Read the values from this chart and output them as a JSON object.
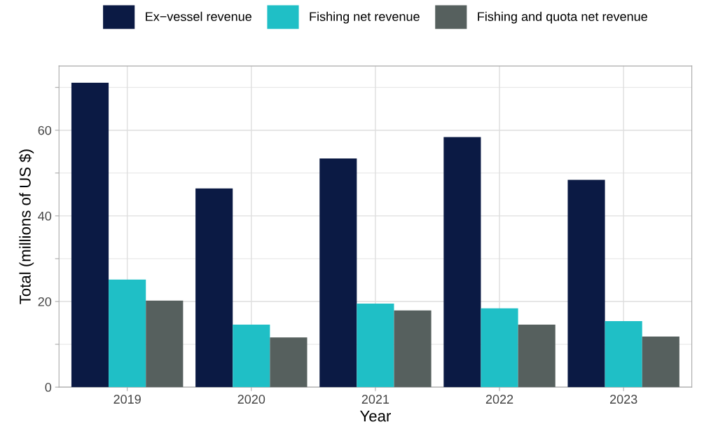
{
  "chart_data": {
    "type": "bar",
    "xlabel": "Year",
    "ylabel": "Total (millions of US $)",
    "categories": [
      "2019",
      "2020",
      "2021",
      "2022",
      "2023"
    ],
    "series": [
      {
        "name": "Ex−vessel revenue",
        "color": "#0b1a44",
        "values": [
          71.1,
          46.4,
          53.4,
          58.4,
          48.4
        ]
      },
      {
        "name": "Fishing net revenue",
        "color": "#1fbfc6",
        "values": [
          25.1,
          14.6,
          19.5,
          18.4,
          15.4
        ]
      },
      {
        "name": "Fishing and quota net revenue",
        "color": "#56605e",
        "values": [
          20.2,
          11.6,
          17.9,
          14.6,
          11.8
        ]
      }
    ],
    "ylim": [
      0,
      75
    ],
    "yticks": [
      0,
      {
        "value": 10,
        "label": null
      },
      20,
      {
        "value": 30,
        "label": null
      },
      40,
      {
        "value": 50,
        "label": null
      },
      60,
      {
        "value": 70,
        "label": null
      }
    ],
    "grid": true,
    "legend": "top"
  }
}
